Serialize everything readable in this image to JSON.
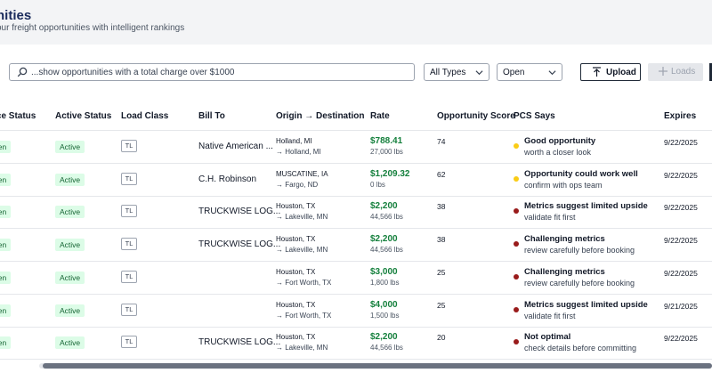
{
  "header": {
    "title": "nities",
    "subtitle": "our freight opportunities with intelligent rankings"
  },
  "toolbar": {
    "search_value": "...show opportunities with a total charge over $1000",
    "type_select": "All Types",
    "status_select": "Open",
    "upload_label": "Upload",
    "loads_label": "Loads"
  },
  "columns": {
    "source_status": "rce Status",
    "active_status": "Active Status",
    "load_class": "Load Class",
    "bill_to": "Bill To",
    "origin_destination": "Origin → Destination",
    "rate": "Rate",
    "opportunity_score": "Opportunity Score",
    "pcs_says": "PCS Says",
    "expires": "Expires"
  },
  "colors": {
    "yellow_dot": "#facc15",
    "red_dot": "#991b1b",
    "rate_green": "#15803d"
  },
  "rows": [
    {
      "source": "pen",
      "active": "Active",
      "load_class": "TL",
      "bill_to": "Native American ...",
      "origin": "Holland, MI",
      "destination": "→ Holland, MI",
      "rate": "$788.41",
      "weight": "27,000 lbs",
      "score": "74",
      "dot": "yellow",
      "pcs_title": "Good opportunity",
      "pcs_sub": "worth a closer look",
      "expires": "9/22/2025"
    },
    {
      "source": "pen",
      "active": "Active",
      "load_class": "TL",
      "bill_to": "C.H. Robinson",
      "origin": "MUSCATINE, IA",
      "destination": "→ Fargo, ND",
      "rate": "$1,209.32",
      "weight": "0 lbs",
      "score": "62",
      "dot": "yellow",
      "pcs_title": "Opportunity could work well",
      "pcs_sub": "confirm with ops team",
      "expires": "9/22/2025"
    },
    {
      "source": "pen",
      "active": "Active",
      "load_class": "TL",
      "bill_to": "TRUCKWISE LOG...",
      "origin": "Houston, TX",
      "destination": "→ Lakeville, MN",
      "rate": "$2,200",
      "weight": "44,566 lbs",
      "score": "38",
      "dot": "red",
      "pcs_title": "Metrics suggest limited upside",
      "pcs_sub": "validate fit first",
      "expires": "9/22/2025"
    },
    {
      "source": "pen",
      "active": "Active",
      "load_class": "TL",
      "bill_to": "TRUCKWISE LOG...",
      "origin": "Houston, TX",
      "destination": "→ Lakeville, MN",
      "rate": "$2,200",
      "weight": "44,566 lbs",
      "score": "38",
      "dot": "red",
      "pcs_title": "Challenging metrics",
      "pcs_sub": "review carefully before booking",
      "expires": "9/22/2025"
    },
    {
      "source": "pen",
      "active": "Active",
      "load_class": "TL",
      "bill_to": "",
      "origin": "Houston, TX",
      "destination": "→ Fort Worth, TX",
      "rate": "$3,000",
      "weight": "1,800 lbs",
      "score": "25",
      "dot": "red",
      "pcs_title": "Challenging metrics",
      "pcs_sub": "review carefully before booking",
      "expires": "9/22/2025"
    },
    {
      "source": "pen",
      "active": "Active",
      "load_class": "TL",
      "bill_to": "",
      "origin": "Houston, TX",
      "destination": "→ Fort Worth, TX",
      "rate": "$4,000",
      "weight": "1,500 lbs",
      "score": "25",
      "dot": "red",
      "pcs_title": "Metrics suggest limited upside",
      "pcs_sub": "validate fit first",
      "expires": "9/21/2025"
    },
    {
      "source": "pen",
      "active": "Active",
      "load_class": "TL",
      "bill_to": "TRUCKWISE LOG...",
      "origin": "Houston, TX",
      "destination": "→ Lakeville, MN",
      "rate": "$2,200",
      "weight": "44,566 lbs",
      "score": "20",
      "dot": "red",
      "pcs_title": "Not optimal",
      "pcs_sub": "check details before committing",
      "expires": "9/22/2025"
    }
  ]
}
